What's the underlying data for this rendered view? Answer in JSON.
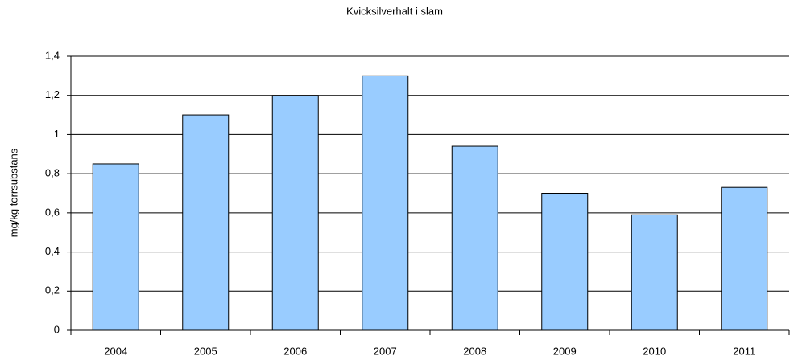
{
  "chart_data": {
    "type": "bar",
    "title": "Kvicksilverhalt i slam",
    "y_label": "mg/kg torrsubstans",
    "categories": [
      "2004",
      "2005",
      "2006",
      "2007",
      "2008",
      "2009",
      "2010",
      "2011"
    ],
    "values": [
      0.85,
      1.1,
      1.2,
      1.3,
      0.94,
      0.7,
      0.59,
      0.73
    ],
    "color": "#99ccff",
    "ylim": [
      0,
      1.4
    ],
    "yticks": [
      0,
      {
        "value": 0.2,
        "label": "0,2"
      },
      {
        "value": 0.4,
        "label": "0,4"
      },
      {
        "value": 0.6,
        "label": "0,6"
      },
      {
        "value": 0.8,
        "label": "0,8"
      },
      1,
      {
        "value": 1.2,
        "label": "1,2"
      },
      {
        "value": 1.4,
        "label": "1,4"
      }
    ],
    "grid": true
  }
}
